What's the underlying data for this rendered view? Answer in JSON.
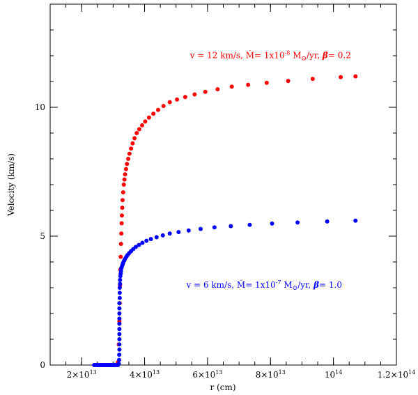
{
  "chart_data": {
    "type": "scatter",
    "title": "",
    "xlabel": "r (cm)",
    "ylabel": "Velocity (km/s)",
    "xlim": [
      10000000000000.0,
      120000000000000.0
    ],
    "ylim": [
      0,
      14
    ],
    "x_ticks": [
      {
        "value": 20000000000000.0,
        "mant": "2",
        "base": "×10",
        "exp": "13"
      },
      {
        "value": 40000000000000.0,
        "mant": "4",
        "base": "×10",
        "exp": "13"
      },
      {
        "value": 60000000000000.0,
        "mant": "6",
        "base": "×10",
        "exp": "13"
      },
      {
        "value": 80000000000000.0,
        "mant": "8",
        "base": "×10",
        "exp": "13"
      },
      {
        "value": 100000000000000.0,
        "mant": "",
        "base": "10",
        "exp": "14"
      },
      {
        "value": 120000000000000.0,
        "mant": "1.2",
        "base": "×10",
        "exp": "14"
      }
    ],
    "y_ticks": [
      {
        "value": 0,
        "label": "0"
      },
      {
        "value": 5,
        "label": "5"
      },
      {
        "value": 10,
        "label": "10"
      }
    ],
    "x_minor_step": 5000000000000.0,
    "y_minor_step": 1,
    "grid": false,
    "series": [
      {
        "color": "#ff0000",
        "annotation": {
          "pre": "v = 12 km/s, ",
          "mdot": "Ṁ",
          "mid": "= 1x10",
          "exp": "-8",
          "msun": " M",
          "sun": "⊙",
          "unit": "/yr, ",
          "beta": "β",
          "post": "= 0.2"
        },
        "annotation_at": [
          80000000000000.0,
          11.9
        ],
        "x": [
          24000000000000.0,
          24500000000000.0,
          25000000000000.0,
          25500000000000.0,
          26000000000000.0,
          26500000000000.0,
          27000000000000.0,
          27500000000000.0,
          28000000000000.0,
          28500000000000.0,
          29000000000000.0,
          29500000000000.0,
          30000000000000.0,
          30500000000000.0,
          31000000000000.0,
          31500000000000.0,
          31800000000000.0,
          32000000000000.0,
          32100000000000.0,
          32200000000000.0,
          32300000000000.0,
          32400000000000.0,
          32500000000000.0,
          32600000000000.0,
          32700000000000.0,
          32800000000000.0,
          32900000000000.0,
          33000000000000.0,
          33200000000000.0,
          33400000000000.0,
          33600000000000.0,
          33800000000000.0,
          34100000000000.0,
          34400000000000.0,
          34800000000000.0,
          35200000000000.0,
          35700000000000.0,
          36200000000000.0,
          36800000000000.0,
          37500000000000.0,
          38300000000000.0,
          39200000000000.0,
          40200000000000.0,
          41400000000000.0,
          42800000000000.0,
          44300000000000.0,
          46000000000000.0,
          48000000000000.0,
          50300000000000.0,
          52900000000000.0,
          55900000000000.0,
          59300000000000.0,
          63200000000000.0,
          67700000000000.0,
          72900000000000.0,
          78800000000000.0,
          85600000000000.0,
          93400000000000.0,
          102300000000000.0,
          107000000000000.0
        ],
        "y": [
          0,
          0,
          0,
          0,
          0,
          0,
          0,
          0,
          0,
          0,
          0,
          0,
          0,
          0,
          0,
          0.1,
          0.8,
          1.7,
          2.4,
          3.1,
          3.7,
          4.2,
          4.7,
          5.1,
          5.5,
          5.8,
          6.1,
          6.4,
          6.7,
          7.0,
          7.2,
          7.4,
          7.6,
          7.8,
          8.0,
          8.2,
          8.4,
          8.6,
          8.8,
          9.0,
          9.15,
          9.3,
          9.45,
          9.6,
          9.75,
          9.9,
          10.05,
          10.2,
          10.3,
          10.4,
          10.5,
          10.6,
          10.7,
          10.8,
          10.87,
          10.95,
          11.02,
          11.1,
          11.17,
          11.2
        ]
      },
      {
        "color": "#0000ff",
        "annotation": {
          "pre": "v = 6 km/s, ",
          "mdot": "Ṁ",
          "mid": "= 1x10",
          "exp": "-7",
          "msun": " M",
          "sun": "⊙",
          "unit": "/yr, ",
          "beta": "β",
          "post": "= 1.0"
        },
        "annotation_at": [
          78000000000000.0,
          3.0
        ],
        "x": [
          24000000000000.0,
          24500000000000.0,
          25000000000000.0,
          25500000000000.0,
          26000000000000.0,
          26500000000000.0,
          27000000000000.0,
          27500000000000.0,
          28000000000000.0,
          28500000000000.0,
          29000000000000.0,
          29500000000000.0,
          30000000000000.0,
          30500000000000.0,
          31000000000000.0,
          31500000000000.0,
          31800000000000.0,
          31900000000000.0,
          31950000000000.0,
          32000000000000.0,
          32000000000000.0,
          32000000000000.0,
          32000000000000.0,
          32000000000000.0,
          32000000000000.0,
          32000000000000.0,
          32000000000000.0,
          32000000000000.0,
          32000000000000.0,
          32100000000000.0,
          32100000000000.0,
          32100000000000.0,
          32200000000000.0,
          32200000000000.0,
          32300000000000.0,
          32400000000000.0,
          32500000000000.0,
          32600000000000.0,
          32800000000000.0,
          33000000000000.0,
          33200000000000.0,
          33500000000000.0,
          33800000000000.0,
          34200000000000.0,
          34600000000000.0,
          35100000000000.0,
          35700000000000.0,
          36400000000000.0,
          37200000000000.0,
          38200000000000.0,
          39300000000000.0,
          40600000000000.0,
          42000000000000.0,
          43800000000000.0,
          45800000000000.0,
          48000000000000.0,
          50800000000000.0,
          54000000000000.0,
          57800000000000.0,
          62200000000000.0,
          67400000000000.0,
          73400000000000.0,
          80500000000000.0,
          88600000000000.0,
          98000000000000.0,
          107000000000000.0
        ],
        "y": [
          0,
          0,
          0,
          0,
          0,
          0,
          0,
          0,
          0,
          0,
          0,
          0,
          0,
          0,
          0,
          0,
          0.05,
          0.2,
          0.4,
          0.6,
          0.8,
          1.0,
          1.2,
          1.4,
          1.6,
          1.8,
          2.0,
          2.2,
          2.4,
          2.6,
          2.8,
          3.0,
          3.15,
          3.3,
          3.45,
          3.55,
          3.65,
          3.75,
          3.82,
          3.9,
          3.97,
          4.05,
          4.12,
          4.2,
          4.27,
          4.34,
          4.42,
          4.5,
          4.58,
          4.66,
          4.74,
          4.82,
          4.89,
          4.96,
          5.03,
          5.1,
          5.16,
          5.22,
          5.28,
          5.34,
          5.39,
          5.44,
          5.49,
          5.53,
          5.57,
          5.6
        ]
      }
    ]
  }
}
